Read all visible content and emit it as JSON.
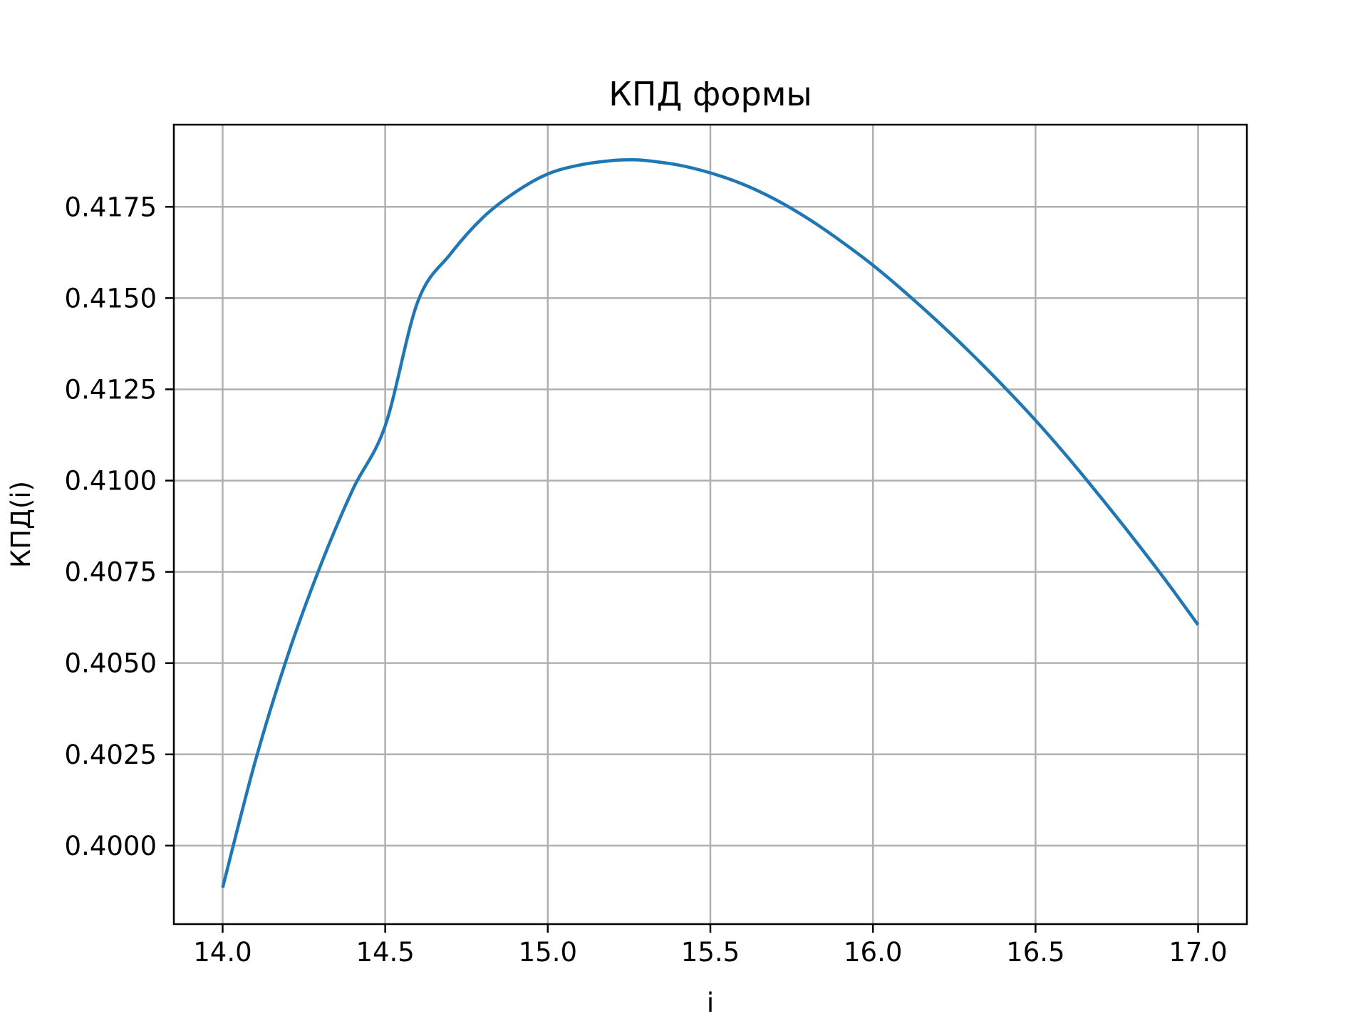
{
  "chart_data": {
    "type": "line",
    "title": "КПД формы",
    "xlabel": "i",
    "ylabel": "КПД(i)",
    "xlim": [
      13.85,
      17.15
    ],
    "ylim": [
      0.39785,
      0.41975
    ],
    "xticks": [
      14.0,
      14.5,
      15.0,
      15.5,
      16.0,
      16.5,
      17.0
    ],
    "xtick_labels": [
      "14.0",
      "14.5",
      "15.0",
      "15.5",
      "16.0",
      "16.5",
      "17.0"
    ],
    "yticks": [
      0.4,
      0.4025,
      0.405,
      0.4075,
      0.41,
      0.4125,
      0.415,
      0.4175
    ],
    "ytick_labels": [
      "0.4000",
      "0.4025",
      "0.4050",
      "0.4075",
      "0.4100",
      "0.4125",
      "0.4150",
      "0.4175"
    ],
    "grid": true,
    "series": [
      {
        "color": "#1f77b4",
        "x": [
          14.0,
          14.1,
          14.2,
          14.3,
          14.4,
          14.5,
          14.6,
          14.7,
          14.8,
          14.9,
          15.0,
          15.1,
          15.2,
          15.26,
          15.3,
          15.4,
          15.5,
          15.6,
          15.7,
          15.8,
          15.9,
          16.0,
          16.1,
          16.2,
          16.3,
          16.4,
          16.5,
          16.6,
          16.7,
          16.8,
          16.9,
          17.0
        ],
        "y": [
          0.39885,
          0.4023,
          0.4052,
          0.40765,
          0.40975,
          0.4115,
          0.4149,
          0.4162,
          0.4172,
          0.4179,
          0.4184,
          0.41865,
          0.41877,
          0.41879,
          0.41877,
          0.41865,
          0.41843,
          0.41812,
          0.4177,
          0.41718,
          0.41657,
          0.4159,
          0.41515,
          0.41435,
          0.4135,
          0.4126,
          0.41165,
          0.41063,
          0.40955,
          0.40843,
          0.40727,
          0.40605
        ]
      }
    ]
  }
}
